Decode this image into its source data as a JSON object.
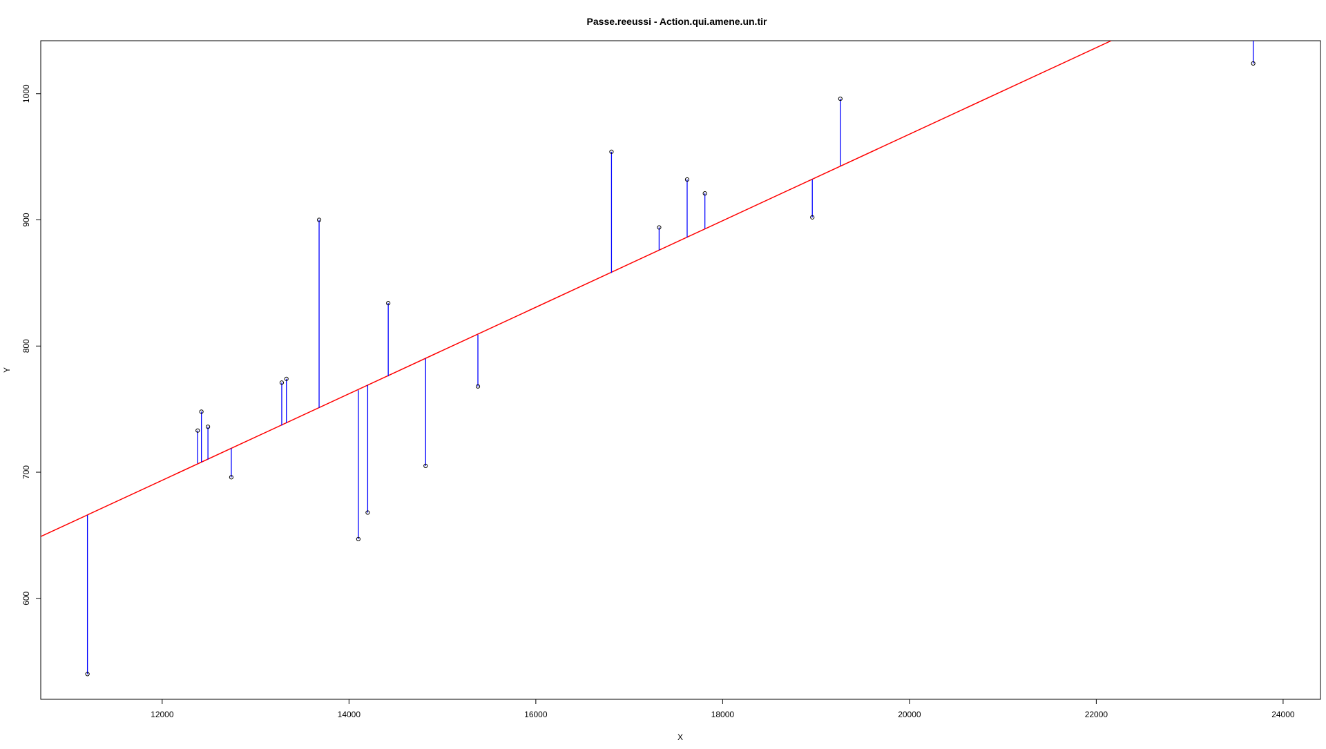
{
  "chart_data": {
    "type": "scatter",
    "title": "Passe.reeussi  -  Action.qui.amene.un.tir",
    "xlabel": "X",
    "ylabel": "Y",
    "xlim": [
      10700,
      24400
    ],
    "ylim": [
      520,
      1042
    ],
    "x_ticks": [
      12000,
      14000,
      16000,
      18000,
      20000,
      22000,
      24000
    ],
    "y_ticks": [
      600,
      700,
      800,
      900,
      1000
    ],
    "grid": false,
    "colors": {
      "points": "#000000",
      "regression_line": "#ff0000",
      "residuals": "#0000ff"
    },
    "regression_line": {
      "x": [
        10700,
        22160
      ],
      "y": [
        649,
        1042
      ]
    },
    "points": [
      {
        "x": 11200,
        "y": 540,
        "fit": 666
      },
      {
        "x": 12380,
        "y": 733,
        "fit": 707
      },
      {
        "x": 12420,
        "y": 748,
        "fit": 708
      },
      {
        "x": 12490,
        "y": 736,
        "fit": 710
      },
      {
        "x": 12740,
        "y": 696,
        "fit": 719
      },
      {
        "x": 13280,
        "y": 771,
        "fit": 737
      },
      {
        "x": 13330,
        "y": 774,
        "fit": 739
      },
      {
        "x": 13680,
        "y": 900,
        "fit": 751
      },
      {
        "x": 14100,
        "y": 647,
        "fit": 765
      },
      {
        "x": 14200,
        "y": 668,
        "fit": 769
      },
      {
        "x": 14420,
        "y": 834,
        "fit": 776
      },
      {
        "x": 14820,
        "y": 705,
        "fit": 790
      },
      {
        "x": 15380,
        "y": 768,
        "fit": 809
      },
      {
        "x": 16810,
        "y": 954,
        "fit": 858
      },
      {
        "x": 17320,
        "y": 894,
        "fit": 876
      },
      {
        "x": 17620,
        "y": 932,
        "fit": 886
      },
      {
        "x": 17810,
        "y": 921,
        "fit": 893
      },
      {
        "x": 18960,
        "y": 902,
        "fit": 932
      },
      {
        "x": 19260,
        "y": 996,
        "fit": 943
      },
      {
        "x": 23680,
        "y": 1024,
        "fit": 1094
      }
    ]
  }
}
